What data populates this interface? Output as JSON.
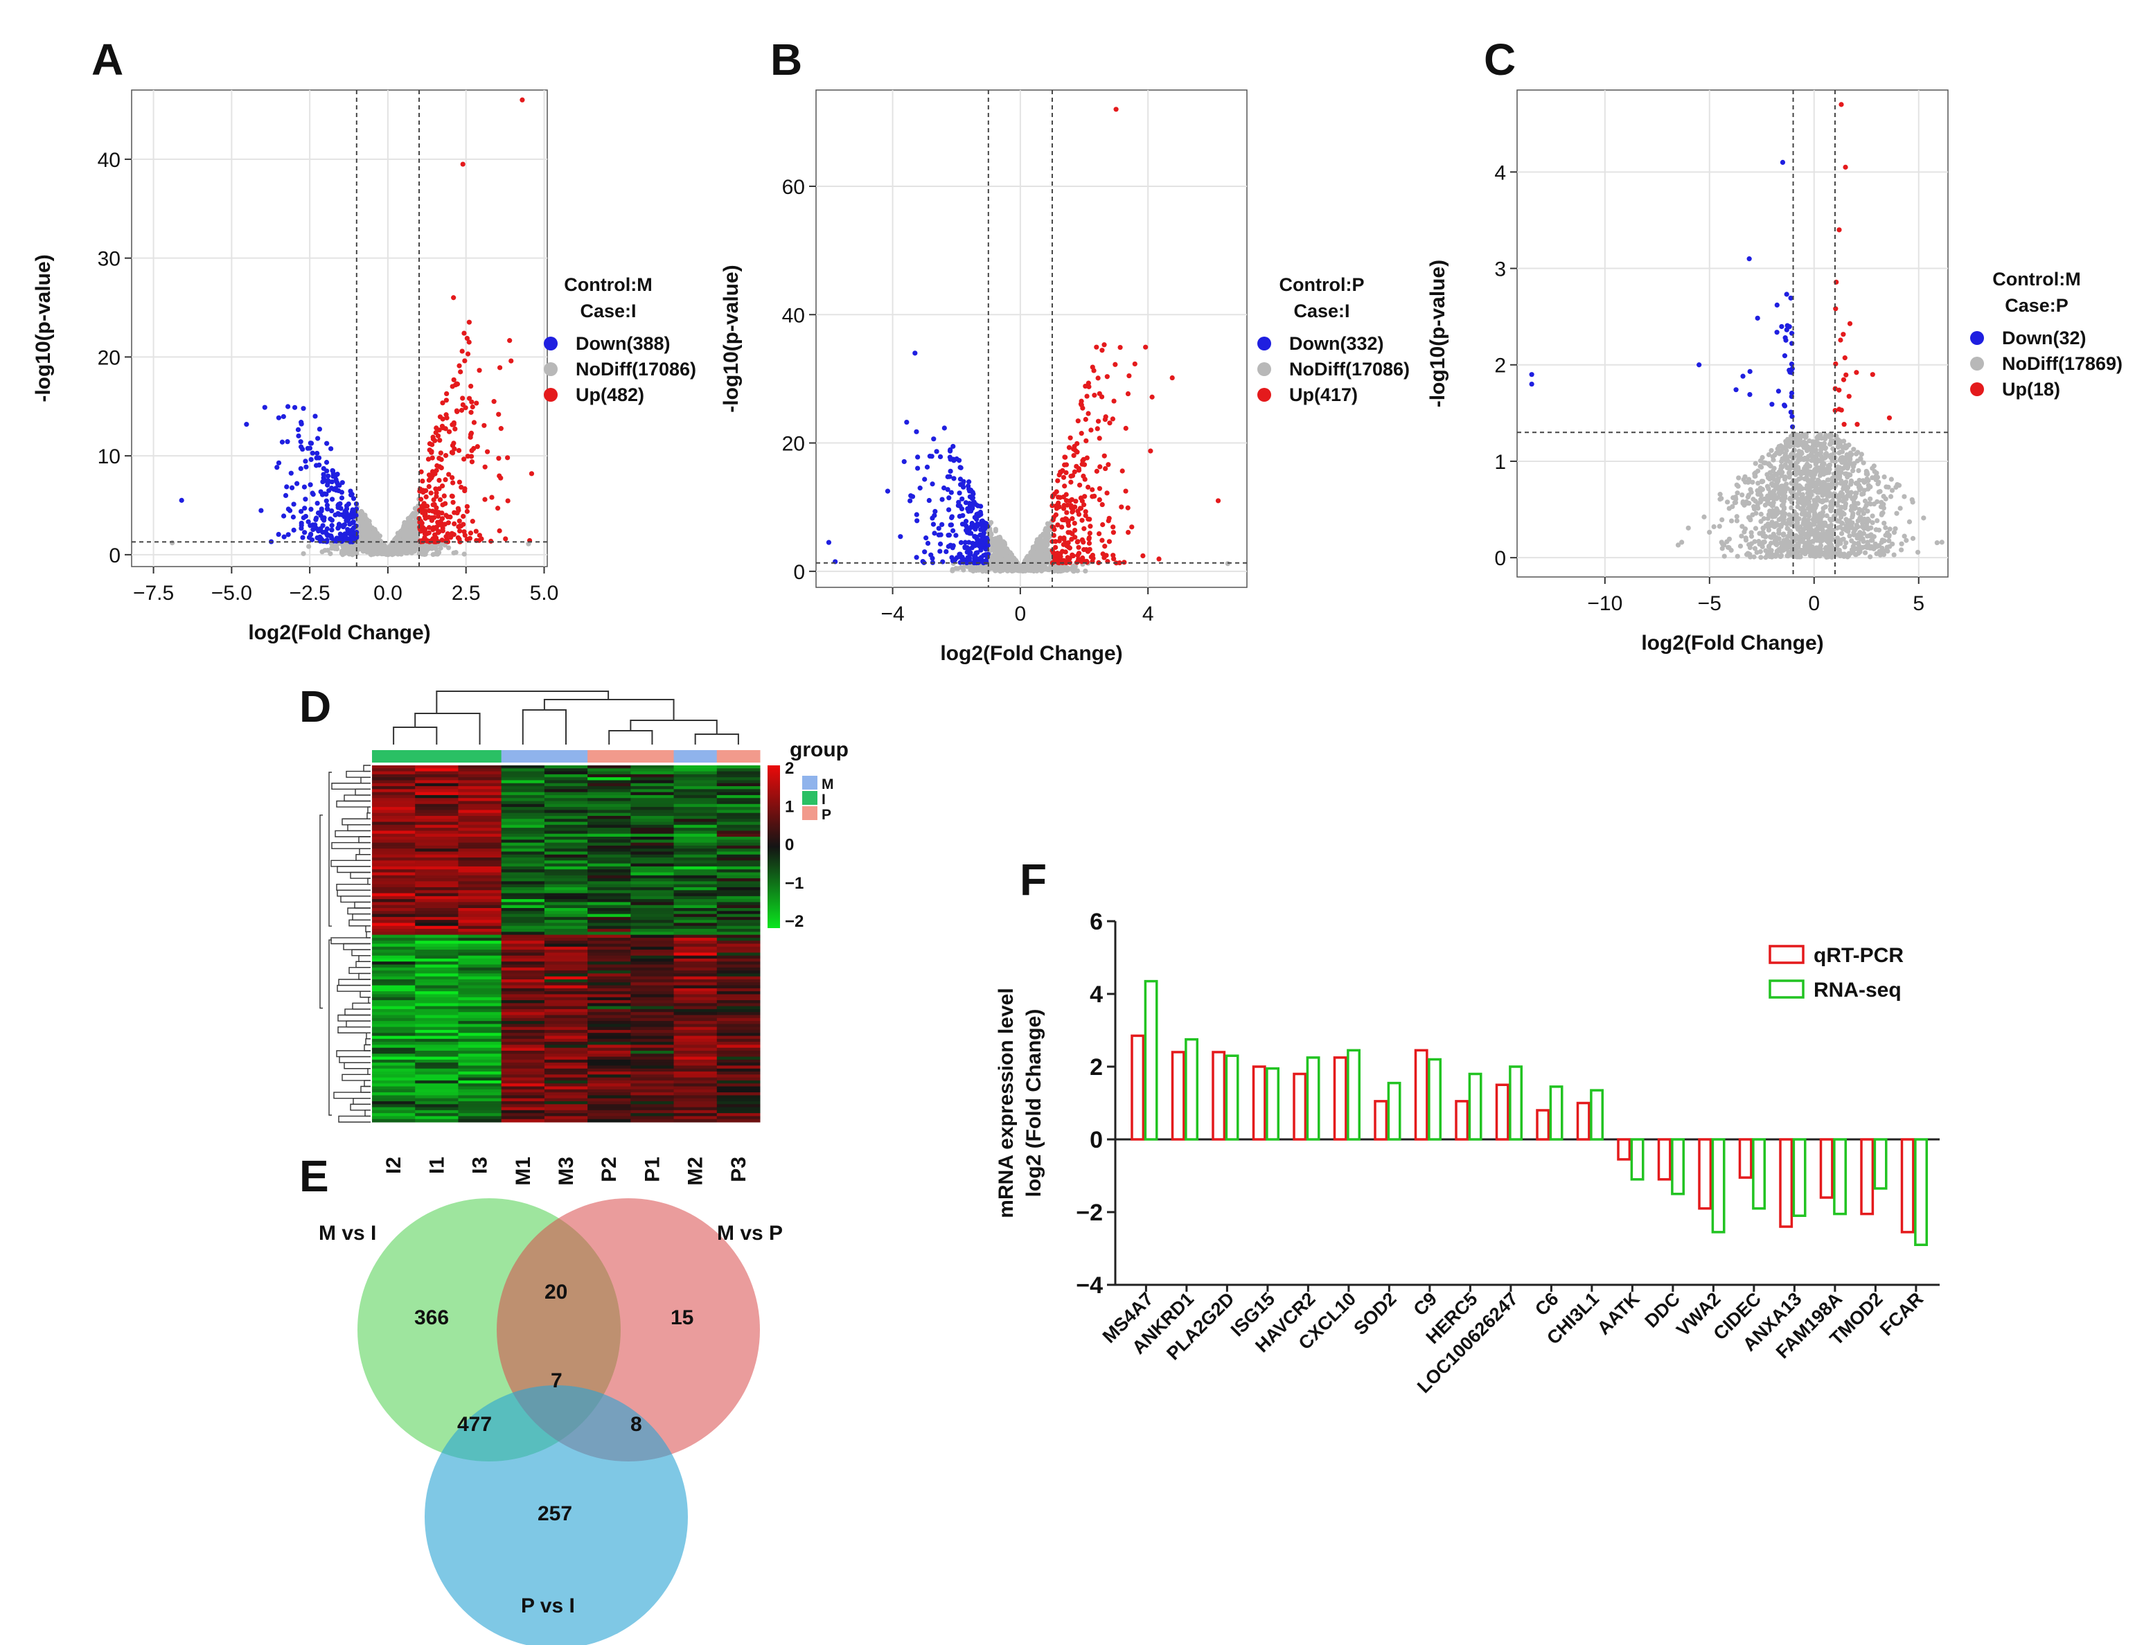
{
  "panels": {
    "A": "A",
    "B": "B",
    "C": "C",
    "D": "D",
    "E": "E",
    "F": "F"
  },
  "volcano": [
    {
      "id": "A",
      "type": "scatter",
      "xlabel": "log2(Fold Change)",
      "ylabel": "-log10(p-value)",
      "xticks": [
        -7.5,
        -5.0,
        -2.5,
        0.0,
        2.5,
        5.0
      ],
      "xtick_labels": [
        "−7.5",
        "−5.0",
        "−2.5",
        "0.0",
        "2.5",
        "5.0"
      ],
      "yticks": [
        0,
        10,
        20,
        30,
        40
      ],
      "ytick_labels": [
        "0",
        "10",
        "20",
        "30",
        "40"
      ],
      "xlim": [
        -8.2,
        5.1
      ],
      "ylim": [
        -1.2,
        47
      ],
      "vlines": [
        -1,
        1
      ],
      "hline": 1.3,
      "legend": {
        "title": [
          "Control:M",
          "Case:I"
        ],
        "items": [
          {
            "label": "Down(388)",
            "color": "#1f1fe0"
          },
          {
            "label": "NoDiff(17086)",
            "color": "#b8b8b8"
          },
          {
            "label": "Up(482)",
            "color": "#e41a1c"
          }
        ]
      },
      "counts": {
        "down": 388,
        "nodiff": 17086,
        "up": 482
      },
      "notable_points": [
        [
          4.3,
          46
        ],
        [
          2.4,
          39.5
        ],
        [
          2.1,
          26
        ],
        [
          2.6,
          21.5
        ],
        [
          4.6,
          8.2
        ],
        [
          -6.6,
          5.5
        ],
        [
          -6.9,
          1.2
        ],
        [
          4.5,
          1.1
        ]
      ]
    },
    {
      "id": "B",
      "type": "scatter",
      "xlabel": "log2(Fold Change)",
      "ylabel": "-log10(p-value)",
      "xticks": [
        -4,
        0,
        4
      ],
      "xtick_labels": [
        "−4",
        "0",
        "4"
      ],
      "yticks": [
        0,
        20,
        40,
        60
      ],
      "ytick_labels": [
        "0",
        "20",
        "40",
        "60"
      ],
      "xlim": [
        -6.4,
        7.1
      ],
      "ylim": [
        -2.5,
        75
      ],
      "vlines": [
        -1,
        1
      ],
      "hline": 1.3,
      "legend": {
        "title": [
          "Control:P",
          "Case:I"
        ],
        "items": [
          {
            "label": "Down(332)",
            "color": "#1f1fe0"
          },
          {
            "label": "NoDiff(17086)",
            "color": "#b8b8b8"
          },
          {
            "label": "Up(417)",
            "color": "#e41a1c"
          }
        ]
      },
      "counts": {
        "down": 332,
        "nodiff": 17086,
        "up": 417
      },
      "notable_points": [
        [
          3.0,
          72
        ],
        [
          -3.3,
          34
        ],
        [
          6.2,
          11
        ],
        [
          -6.0,
          4.5
        ],
        [
          -5.8,
          1.5
        ],
        [
          6.5,
          1.2
        ]
      ]
    },
    {
      "id": "C",
      "type": "scatter",
      "xlabel": "log2(Fold Change)",
      "ylabel": "-log10(p-value)",
      "xticks": [
        -10,
        -5,
        0,
        5
      ],
      "xtick_labels": [
        "−10",
        "−5",
        "0",
        "5"
      ],
      "yticks": [
        0,
        1,
        2,
        3,
        4
      ],
      "ytick_labels": [
        "0",
        "1",
        "2",
        "3",
        "4"
      ],
      "xlim": [
        -14.2,
        6.4
      ],
      "ylim": [
        -0.2,
        4.85
      ],
      "vlines": [
        -1,
        1
      ],
      "hline": 1.3,
      "legend": {
        "title": [
          "Control:M",
          "Case:P"
        ],
        "items": [
          {
            "label": "Down(32)",
            "color": "#1f1fe0"
          },
          {
            "label": "NoDiff(17869)",
            "color": "#b8b8b8"
          },
          {
            "label": "Up(18)",
            "color": "#e41a1c"
          }
        ]
      },
      "counts": {
        "down": 32,
        "nodiff": 17869,
        "up": 18
      },
      "notable_points": [
        [
          -1.5,
          4.1
        ],
        [
          1.3,
          4.7
        ],
        [
          1.5,
          4.05
        ],
        [
          -3.1,
          3.1
        ],
        [
          1.2,
          3.4
        ],
        [
          -5.5,
          2.0
        ],
        [
          2.8,
          1.9
        ],
        [
          3.6,
          1.45
        ],
        [
          -13.5,
          1.9
        ],
        [
          -13.5,
          1.8
        ]
      ]
    }
  ],
  "heatmap": {
    "type": "heatmap",
    "columns": [
      "I2",
      "I1",
      "I3",
      "M1",
      "M3",
      "P2",
      "P1",
      "M2",
      "P3"
    ],
    "groups": [
      "I",
      "I",
      "I",
      "M",
      "M",
      "P",
      "P",
      "M",
      "P"
    ],
    "group_colors": {
      "M": "#8fb3ec",
      "I": "#2ac064",
      "P": "#f29a8c"
    },
    "legend_title": "group",
    "legend_groups": [
      "M",
      "I",
      "P"
    ],
    "scale_ticks": [
      "2",
      "1",
      "0",
      "−1",
      "−2"
    ],
    "scale_range": [
      -2,
      2
    ]
  },
  "venn": {
    "sets": [
      "M vs I",
      "M vs P",
      "P vs I"
    ],
    "colors": {
      "M vs I": "#4fcf4f",
      "M vs P": "#d94a4a",
      "P vs I": "#2aa3d4"
    },
    "regions": {
      "only_MvsI": "366",
      "MvsI_MvsP": "20",
      "only_MvsP": "15",
      "all": "7",
      "MvsI_PvsI": "477",
      "MvsP_PvsI": "8",
      "only_PvsI": "257"
    }
  },
  "chart_data": {
    "type": "bar",
    "ylabel": "mRNA expression level\nlog2 (Fold Change)",
    "ylabel_lines": [
      "mRNA expression level",
      "log2 (Fold Change)"
    ],
    "ylim": [
      -4,
      6
    ],
    "yticks": [
      -4,
      -2,
      0,
      2,
      4,
      6
    ],
    "ytick_labels": [
      "−4",
      "−2",
      "0",
      "2",
      "4",
      "6"
    ],
    "categories": [
      "MS4A7",
      "ANKRD1",
      "PLA2G2D",
      "ISG15",
      "HAVCR2",
      "CXCL10",
      "SOD2",
      "C9",
      "HERC5",
      "LOC100626247",
      "C6",
      "CHI3L1",
      "AATK",
      "DDC",
      "VWA2",
      "CIDEC",
      "ANXA13",
      "FAM198A",
      "TMOD2",
      "FCAR"
    ],
    "series": [
      {
        "name": "qRT-PCR",
        "color": "#e41a1c",
        "values": [
          2.85,
          2.4,
          2.4,
          2.0,
          1.8,
          2.25,
          1.05,
          2.45,
          1.05,
          1.5,
          0.8,
          1.0,
          -0.55,
          -1.1,
          -1.9,
          -1.05,
          -2.4,
          -1.6,
          -2.05,
          -2.55
        ]
      },
      {
        "name": "RNA-seq",
        "color": "#22c322",
        "values": [
          4.35,
          2.75,
          2.3,
          1.95,
          2.25,
          2.45,
          1.55,
          2.2,
          1.8,
          2.0,
          1.45,
          1.35,
          -1.1,
          -1.5,
          -2.55,
          -1.9,
          -2.1,
          -2.05,
          -1.35,
          -2.9
        ]
      }
    ]
  }
}
